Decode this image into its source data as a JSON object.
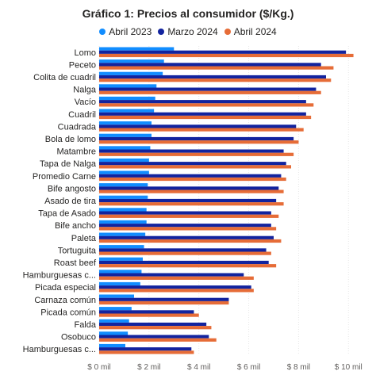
{
  "chart_data": {
    "type": "bar",
    "orientation": "horizontal",
    "title": "Gráfico 1: Precios al consumidor ($/Kg.)",
    "categories": [
      "Lomo",
      "Peceto",
      "Colita de cuadril",
      "Nalga",
      "Vacío",
      "Cuadril",
      "Cuadrada",
      "Bola de lomo",
      "Matambre",
      "Tapa de Nalga",
      "Promedio Carne",
      "Bife angosto",
      "Asado de tira",
      "Tapa de Asado",
      "Bife ancho",
      "Paleta",
      "Tortuguita",
      "Roast beef",
      "Hamburguesas c...",
      "Picada especial",
      "Carnaza común",
      "Picada común",
      "Falda",
      "Osobuco",
      "Hamburguesas c..."
    ],
    "series": [
      {
        "name": "Abril 2023",
        "color": "#118dff",
        "values": [
          3000,
          2600,
          2550,
          2300,
          2250,
          2200,
          2100,
          2100,
          2050,
          2000,
          2000,
          1950,
          1950,
          1900,
          1900,
          1850,
          1800,
          1750,
          1700,
          1650,
          1400,
          1300,
          1200,
          1150,
          1050
        ]
      },
      {
        "name": "Marzo 2024",
        "color": "#12239e",
        "values": [
          9900,
          8900,
          9100,
          8700,
          8300,
          8300,
          7900,
          7800,
          7400,
          7500,
          7300,
          7200,
          7100,
          6900,
          6900,
          7000,
          6700,
          6800,
          5800,
          6100,
          5200,
          3800,
          4300,
          4400,
          3700
        ]
      },
      {
        "name": "Abril 2024",
        "color": "#e66c37",
        "values": [
          10200,
          9400,
          9300,
          8900,
          8600,
          8500,
          8200,
          8000,
          7800,
          7700,
          7500,
          7400,
          7400,
          7200,
          7100,
          7300,
          6900,
          7100,
          6200,
          6200,
          5200,
          4000,
          4500,
          4700,
          3800
        ]
      }
    ],
    "xlim": [
      0,
      10500
    ],
    "x_ticks": [
      0,
      2000,
      4000,
      6000,
      8000,
      10000
    ],
    "x_tick_labels": [
      "$ 0 mil",
      "$ 2 mil",
      "$ 4 mil",
      "$ 6 mil",
      "$ 8 mil",
      "$ 10 mil"
    ],
    "legend_position": "top-center",
    "grid": true
  }
}
